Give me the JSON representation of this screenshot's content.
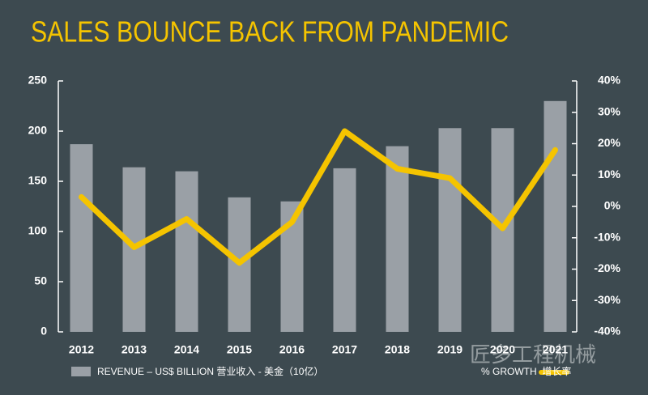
{
  "chart_data": {
    "type": "bar-line",
    "title": "SALES BOUNCE BACK FROM PANDEMIC",
    "categories": [
      "2012",
      "2013",
      "2014",
      "2015",
      "2016",
      "2017",
      "2018",
      "2019",
      "2020",
      "2021"
    ],
    "series": [
      {
        "name": "REVENUE – US$ BILLION  营业收入 - 美金（10亿）",
        "color": "#9aa0a6",
        "type": "bar",
        "values": [
          187,
          164,
          160,
          134,
          130,
          163,
          185,
          203,
          203,
          230
        ]
      },
      {
        "name": "% GROWTH  增长率",
        "color": "#f5c400",
        "type": "line",
        "axis": "y2",
        "values": [
          3,
          -13,
          -4,
          -18,
          -5,
          24,
          12,
          9,
          -7,
          18
        ]
      }
    ],
    "ylim": [
      0,
      250
    ],
    "yticks": [
      0,
      50,
      100,
      150,
      200,
      250
    ],
    "y2lim": [
      -40,
      40
    ],
    "y2ticks": [
      {
        "value": -40,
        "label": "-40%"
      },
      {
        "value": -30,
        "label": "-30%"
      },
      {
        "value": -20,
        "label": "-20%"
      },
      {
        "value": -10,
        "label": "-10%"
      },
      {
        "value": 0,
        "label": "0%"
      },
      {
        "value": 10,
        "label": "10%"
      },
      {
        "value": 20,
        "label": "20%"
      },
      {
        "value": 30,
        "label": "30%"
      },
      {
        "value": 40,
        "label": "40%"
      }
    ],
    "watermark": "匠多工程机械"
  }
}
